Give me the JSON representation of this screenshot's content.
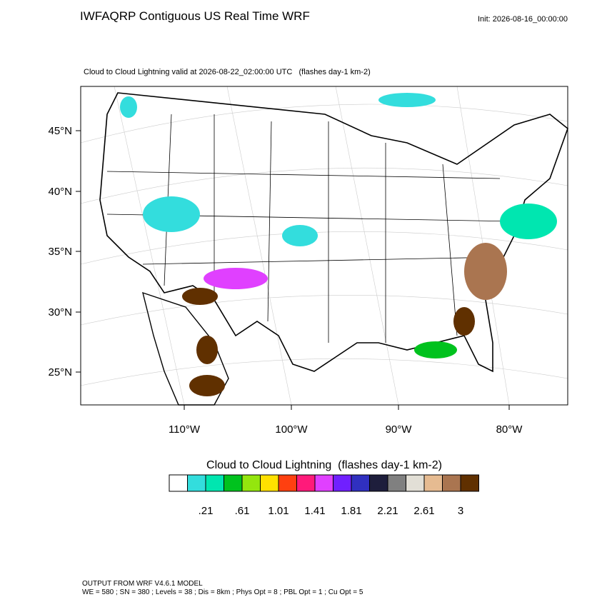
{
  "header": {
    "title": "IWFAQRP Contiguous US Real Time WRF",
    "init": "Init: 2026-08-16_00:00:00"
  },
  "map": {
    "subtitle": "Cloud to Cloud Lightning valid at 2026-08-22_02:00:00 UTC   (flashes day-1 km-2)",
    "lat_labels": [
      "45°N",
      "40°N",
      "35°N",
      "30°N",
      "25°N"
    ],
    "lon_labels": [
      "110°W",
      "100°W",
      "90°W",
      "80°W"
    ]
  },
  "colorbar": {
    "title": "Cloud to Cloud Lightning  (flashes day-1 km-2)",
    "colors": [
      "#ffffff",
      "#33dddd",
      "#00e6b0",
      "#00c21e",
      "#94e60e",
      "#ffe000",
      "#ff4010",
      "#ff1a7a",
      "#e040ff",
      "#7020ff",
      "#3030c0",
      "#1e1e3c",
      "#808080",
      "#e2dfd6",
      "#e6bb91",
      "#aa7550",
      "#603000"
    ],
    "labels": [
      ".21",
      ".61",
      "1.01",
      "1.41",
      "1.81",
      "2.21",
      "2.61",
      "3"
    ]
  },
  "footer": {
    "line1": "OUTPUT FROM WRF V4.6.1 MODEL",
    "line2": "WE = 580 ; SN = 380 ; Levels = 38 ; Dis = 8km ; Phys Opt = 8 ; PBL Opt = 1 ; Cu Opt = 5"
  }
}
